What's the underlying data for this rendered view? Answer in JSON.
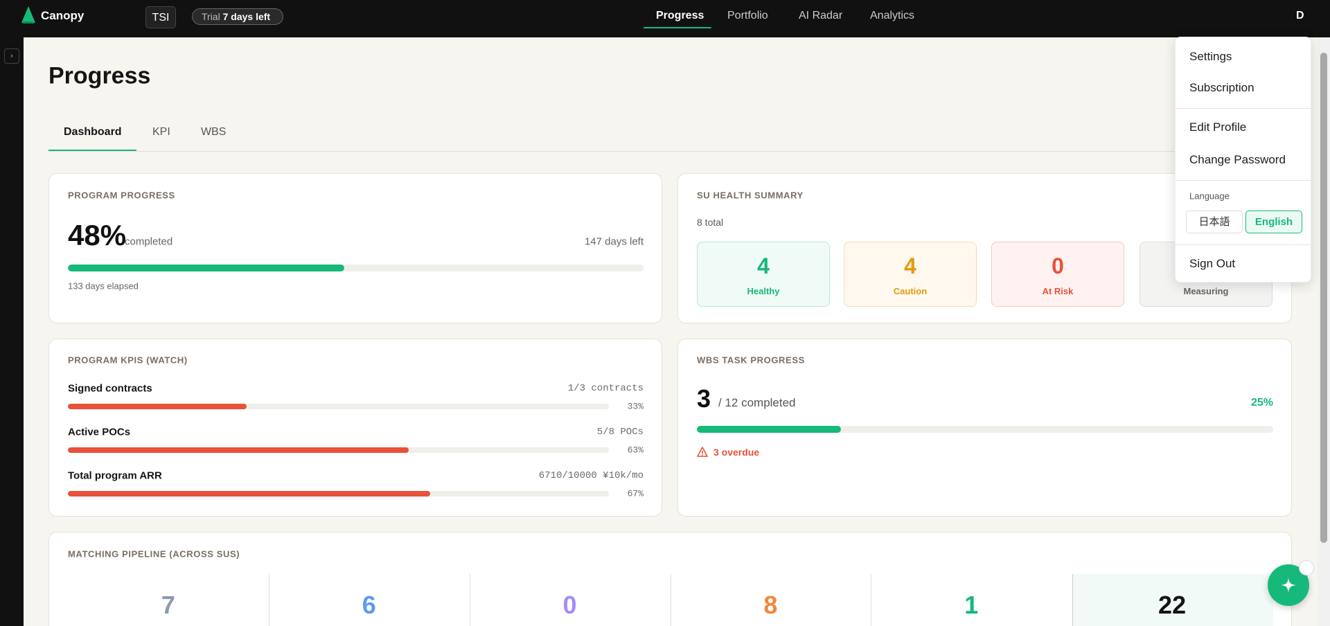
{
  "nav": {
    "brand": "Canopy",
    "org": "TSI",
    "trial": "Trial",
    "trial_left": "7 days left",
    "links": [
      "Progress",
      "Portfolio",
      "AI Radar",
      "Analytics"
    ],
    "user": "D"
  },
  "page": {
    "title": "Progress",
    "tabs": [
      "Dashboard",
      "KPI",
      "WBS"
    ]
  },
  "program_progress": {
    "title": "PROGRAM PROGRESS",
    "percent": 48,
    "percent_label": "48%",
    "completed": "completed",
    "days_left": "147 days left",
    "elapsed": "133 days elapsed"
  },
  "su_health": {
    "title": "SU HEALTH SUMMARY",
    "total": "8 total",
    "items": [
      {
        "count": 4,
        "label": "Healthy"
      },
      {
        "count": 4,
        "label": "Caution"
      },
      {
        "count": 0,
        "label": "At Risk"
      },
      {
        "label": "Measuring"
      }
    ]
  },
  "kpis": {
    "title": "PROGRAM KPIS (WATCH)",
    "items": [
      {
        "name": "Signed contracts",
        "detail": "1/3 contracts",
        "percent": 33,
        "percent_label": "33%"
      },
      {
        "name": "Active POCs",
        "detail": "5/8 POCs",
        "percent": 63,
        "percent_label": "63%"
      },
      {
        "name": "Total program ARR",
        "detail": "6710/10000 ¥10k/mo",
        "percent": 67,
        "percent_label": "67%"
      }
    ]
  },
  "wbs": {
    "title": "WBS TASK PROGRESS",
    "done": 3,
    "total": "/ 12 completed",
    "percent": 25,
    "percent_label": "25%",
    "overdue": "3 overdue"
  },
  "pipeline": {
    "title": "MATCHING PIPELINE (ACROSS SUS)",
    "counts": [
      7,
      6,
      0,
      8,
      1,
      22
    ]
  },
  "menu": {
    "items": [
      "Settings",
      "Subscription",
      "Edit Profile",
      "Change Password"
    ],
    "language": "Language",
    "languages": [
      "日本語",
      "English"
    ],
    "sign_out": "Sign Out"
  }
}
